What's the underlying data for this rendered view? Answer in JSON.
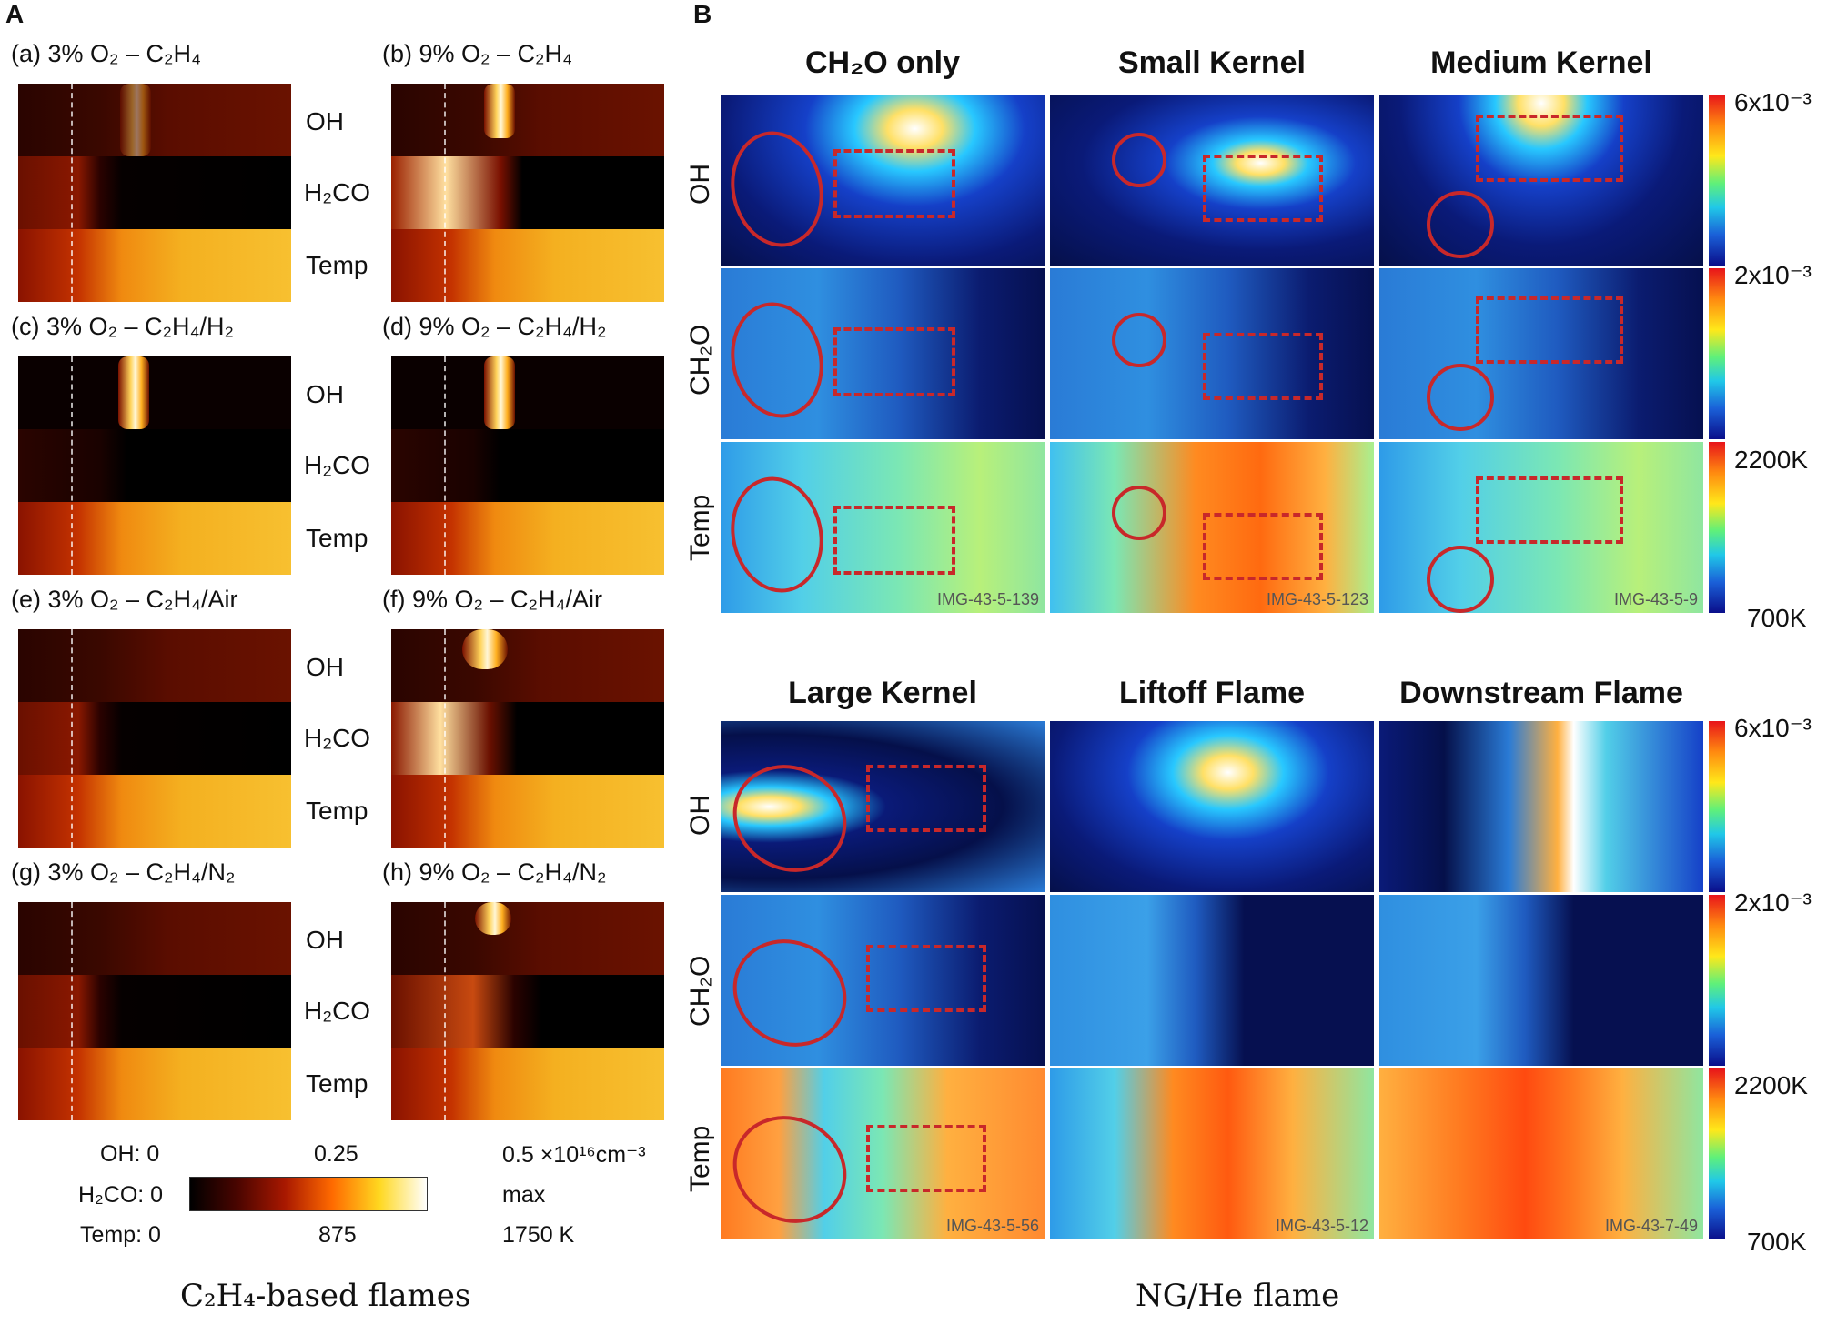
{
  "panel_a": {
    "letter": "A",
    "plots": [
      {
        "id": "a",
        "title": "(a) 3% O₂ – C₂H₄"
      },
      {
        "id": "b",
        "title": "(b) 9% O₂ – C₂H₄"
      },
      {
        "id": "c",
        "title": "(c) 3% O₂ – C₂H₄/H₂"
      },
      {
        "id": "d",
        "title": "(d) 9% O₂ – C₂H₄/H₂"
      },
      {
        "id": "e",
        "title": "(e) 3% O₂ – C₂H₄/Air"
      },
      {
        "id": "f",
        "title": "(f) 9% O₂ – C₂H₄/Air"
      },
      {
        "id": "g",
        "title": "(g) 3% O₂ – C₂H₄/N₂"
      },
      {
        "id": "h",
        "title": "(h) 9% O₂ – C₂H₄/N₂"
      }
    ],
    "row_labels": {
      "oh": "OH",
      "h2co": "H₂CO",
      "temp": "Temp"
    },
    "legend": {
      "oh_label": "OH: 0",
      "oh_mid": "0.25",
      "oh_max": "0.5 ×10¹⁶cm⁻³",
      "h2co_label": "H₂CO: 0",
      "h2co_max": "max",
      "temp_label": "Temp: 0",
      "temp_mid": "875",
      "temp_max": "1750 K"
    },
    "caption": "C₂H₄-based flames"
  },
  "panel_b": {
    "letter": "B",
    "top_titles": [
      "CH₂O only",
      "Small Kernel",
      "Medium Kernel"
    ],
    "bottom_titles": [
      "Large Kernel",
      "Liftoff Flame",
      "Downstream Flame"
    ],
    "row_labels": {
      "oh": "OH",
      "ch2o": "CH₂O",
      "temp": "Temp"
    },
    "image_ids_top": [
      "IMG-43-5-139",
      "IMG-43-5-123",
      "IMG-43-5-9"
    ],
    "image_ids_bottom": [
      "IMG-43-5-56",
      "IMG-43-5-12",
      "IMG-43-7-49"
    ],
    "colorbars": {
      "oh_max": "6x10⁻³",
      "ch2o_max": "2x10⁻³",
      "temp_max": "2200K",
      "temp_min": "700K"
    },
    "caption": "NG/He flame"
  }
}
